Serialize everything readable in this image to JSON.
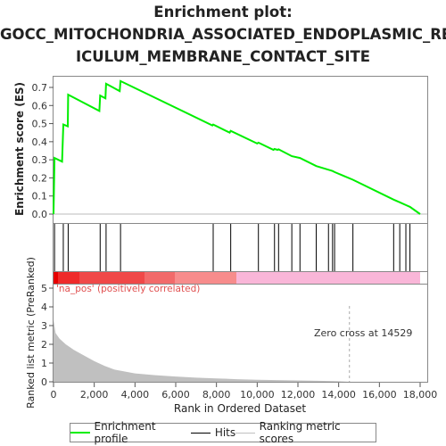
{
  "title_lines": [
    "Enrichment plot:",
    "GOCC_MITOCHONDRIA_ASSOCIATED_ENDOPLASMIC_RET",
    "ICULUM_MEMBRANE_CONTACT_SITE"
  ],
  "colors": {
    "es_line": "#00ee00",
    "hits": "#000000",
    "metric_fill": "#c0c0c0",
    "pos_label": "#e05050",
    "zero_line": "#aaaaaa"
  },
  "chart_data": [
    {
      "type": "line",
      "name": "enrichment-profile",
      "ylabel": "Enrichment score (ES)",
      "ylim": [
        0,
        0.75
      ],
      "yticks": [
        "0.0",
        "0.1",
        "0.2",
        "0.3",
        "0.4",
        "0.5",
        "0.6",
        "0.7"
      ],
      "xlim": [
        0,
        18000
      ],
      "points": [
        [
          0,
          0
        ],
        [
          50,
          0.31
        ],
        [
          420,
          0.29
        ],
        [
          480,
          0.495
        ],
        [
          700,
          0.485
        ],
        [
          720,
          0.66
        ],
        [
          2250,
          0.57
        ],
        [
          2290,
          0.655
        ],
        [
          2550,
          0.64
        ],
        [
          2580,
          0.72
        ],
        [
          3250,
          0.68
        ],
        [
          3290,
          0.735
        ],
        [
          7800,
          0.49
        ],
        [
          7840,
          0.495
        ],
        [
          8650,
          0.45
        ],
        [
          8700,
          0.46
        ],
        [
          10000,
          0.39
        ],
        [
          10060,
          0.395
        ],
        [
          10800,
          0.355
        ],
        [
          10850,
          0.36
        ],
        [
          11000,
          0.355
        ],
        [
          11050,
          0.358
        ],
        [
          11700,
          0.32
        ],
        [
          12100,
          0.31
        ],
        [
          12900,
          0.265
        ],
        [
          13500,
          0.245
        ],
        [
          13700,
          0.238
        ],
        [
          13800,
          0.232
        ],
        [
          14700,
          0.19
        ],
        [
          16700,
          0.08
        ],
        [
          17000,
          0.065
        ],
        [
          17300,
          0.05
        ],
        [
          17500,
          0.04
        ],
        [
          18000,
          0.0
        ]
      ]
    },
    {
      "type": "scatter",
      "name": "hits",
      "x": [
        50,
        480,
        720,
        2290,
        2580,
        3290,
        7840,
        8700,
        10060,
        10850,
        11050,
        11700,
        12100,
        12900,
        13500,
        13700,
        13800,
        14700,
        16700,
        17000,
        17300,
        17500
      ]
    },
    {
      "type": "area",
      "name": "ranked-list-metric",
      "xlabel": "Rank in Ordered Dataset",
      "ylabel": "Ranked list metric (PreRanked)",
      "ylim": [
        0,
        5
      ],
      "yticks": [
        "0",
        "1",
        "2",
        "3",
        "4",
        "5"
      ],
      "xlim": [
        0,
        18000
      ],
      "xticks": [
        "0",
        "2,000",
        "4,000",
        "6,000",
        "8,000",
        "10,000",
        "12,000",
        "14,000",
        "16,000",
        "18,000"
      ],
      "points": [
        [
          0,
          3.3
        ],
        [
          100,
          2.6
        ],
        [
          300,
          2.3
        ],
        [
          600,
          2.0
        ],
        [
          1000,
          1.7
        ],
        [
          1500,
          1.4
        ],
        [
          2000,
          1.1
        ],
        [
          2500,
          0.85
        ],
        [
          3000,
          0.65
        ],
        [
          4000,
          0.45
        ],
        [
          5000,
          0.35
        ],
        [
          6000,
          0.28
        ],
        [
          7000,
          0.22
        ],
        [
          8000,
          0.18
        ],
        [
          9000,
          0.14
        ],
        [
          10000,
          0.11
        ],
        [
          11000,
          0.09
        ],
        [
          12000,
          0.07
        ],
        [
          13000,
          0.05
        ],
        [
          14000,
          0.03
        ],
        [
          14529,
          0.0
        ],
        [
          18000,
          0.0
        ]
      ],
      "zero_cross_label": "Zero cross at 14529",
      "zero_cross_x": 14529,
      "pos_label": "'na_pos' (positively correlated)"
    }
  ],
  "legend": [
    {
      "label": "Enrichment profile",
      "color": "#00ee00"
    },
    {
      "label": "Hits",
      "color": "#000000"
    },
    {
      "label": "Ranking metric scores",
      "color": "#c0c0c0"
    }
  ]
}
